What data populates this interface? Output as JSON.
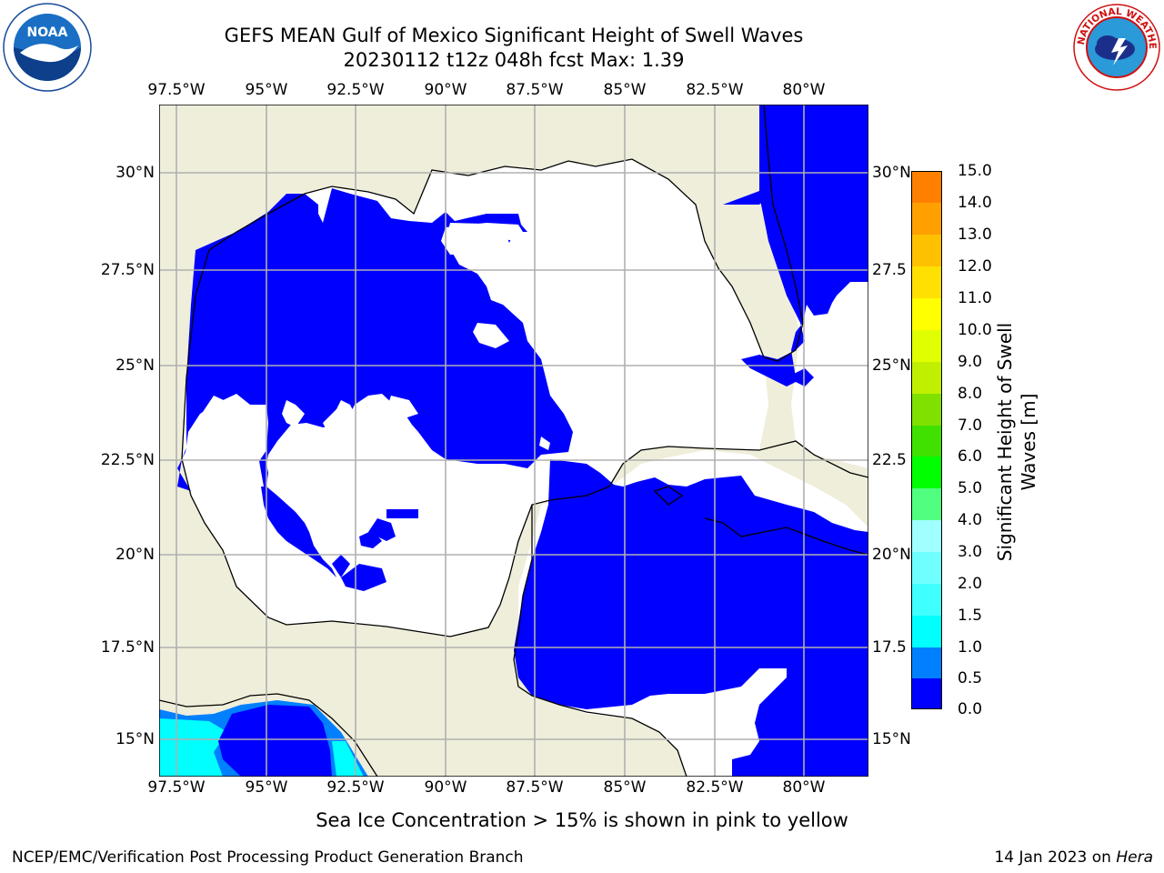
{
  "header": {
    "title_line1": "GEFS MEAN Gulf of Mexico Significant Height of Swell Waves",
    "title_line2": "20230112 t12z 048h fcst   Max: 1.39"
  },
  "logos": {
    "left": "NOAA",
    "right_text": "NATIONAL WEATHER SERVICE"
  },
  "map": {
    "lon_labels": [
      "97.5°W",
      "95°W",
      "92.5°W",
      "90°W",
      "87.5°W",
      "85°W",
      "82.5°W",
      "80°W"
    ],
    "lat_labels_left": [
      "30°N",
      "27.5°N",
      "25°N",
      "22.5°N",
      "20°N",
      "17.5°N",
      "15°N"
    ],
    "lat_labels_right": [
      "30°N",
      "27.5",
      "25°N",
      "22.5",
      "20°N",
      "17.5",
      "15°N"
    ],
    "colors": {
      "land": "#efeedb",
      "ocean_lowest": "#0000ff",
      "grid": "#b0b0b0"
    }
  },
  "colorbar": {
    "label_line1": "Significant Height of Swell",
    "label_line2": "Waves [m]",
    "ticks": [
      "15.0",
      "14.0",
      "13.0",
      "12.0",
      "11.0",
      "10.0",
      "9.0",
      "8.0",
      "7.0",
      "6.0",
      "5.0",
      "4.0",
      "3.0",
      "2.0",
      "1.5",
      "1.0",
      "0.5",
      "0.0"
    ],
    "colors": [
      "#0000ff",
      "#0080ff",
      "#00ffff",
      "#40ffff",
      "#70ffff",
      "#a0ffff",
      "#50ff80",
      "#00ff00",
      "#40e000",
      "#80e000",
      "#c0f000",
      "#e0ff00",
      "#ffff00",
      "#ffe000",
      "#ffc000",
      "#ffa000",
      "#ff8000",
      "#ff6000",
      "#ff3000",
      "#ff0000"
    ]
  },
  "footer": {
    "note": "Sea Ice Concentration > 15% is shown in pink to yellow",
    "credit": "NCEP/EMC/Verification Post Processing Product Generation Branch",
    "date": "14 Jan 2023 on",
    "machine": "Hera"
  }
}
